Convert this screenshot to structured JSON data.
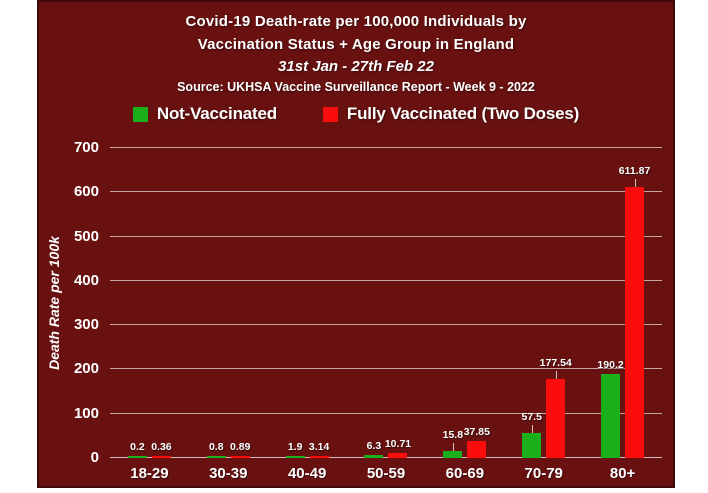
{
  "panel": {
    "bg": "#691111",
    "border": "#3c0a0a",
    "text_color": "#ffffff"
  },
  "title": {
    "line1": "Covid-19 Death-rate per 100,000 Individuals by",
    "line2": "Vaccination Status + Age Group in England",
    "line3": "31st Jan - 27th Feb 22",
    "source": "Source: UKHSA Vaccine Surveillance Report - Week 9 - 2022"
  },
  "legend": {
    "items": [
      {
        "label": "Not-Vaccinated",
        "color": "#1caf1c"
      },
      {
        "label": "Fully Vaccinated (Two Doses)",
        "color": "#fc0d0d"
      }
    ]
  },
  "chart_data": {
    "type": "bar",
    "title": "Covid-19 Death-rate per 100,000 Individuals by Vaccination Status + Age Group in England, 31st Jan - 27th Feb 22",
    "subtitle": "Source: UKHSA Vaccine Surveillance Report - Week 9 - 2022",
    "categories": [
      "18-29",
      "30-39",
      "40-49",
      "50-59",
      "60-69",
      "70-79",
      "80+"
    ],
    "series": [
      {
        "name": "Not-Vaccinated",
        "color": "#1caf1c",
        "values": [
          0.2,
          0.8,
          1.9,
          6.3,
          15.8,
          57.5,
          190.2
        ],
        "labels": [
          "0.2",
          "0.8",
          "1.9",
          "6.3",
          "15.8",
          "57.5",
          "190.2"
        ],
        "label_leaders": [
          0,
          0,
          0,
          0,
          1,
          1,
          0
        ]
      },
      {
        "name": "Fully Vaccinated (Two Doses)",
        "color": "#fc0d0d",
        "values": [
          0.36,
          0.89,
          3.14,
          10.71,
          37.85,
          177.54,
          611.87
        ],
        "labels": [
          "0.36",
          "0.89",
          "3.14",
          "10.71",
          "37.85",
          "177.54",
          "611.87"
        ],
        "label_leaders": [
          0,
          0,
          0,
          0,
          0,
          1,
          1
        ]
      }
    ],
    "xlabel": "",
    "ylabel": "Death Rate per 100k",
    "ylim": [
      0,
      700
    ],
    "yticks": [
      0,
      100,
      200,
      300,
      400,
      500,
      600,
      700
    ],
    "grid": true,
    "gridline_color": "#c3a6a6",
    "background_color": "#691111",
    "legend_position": "top"
  }
}
